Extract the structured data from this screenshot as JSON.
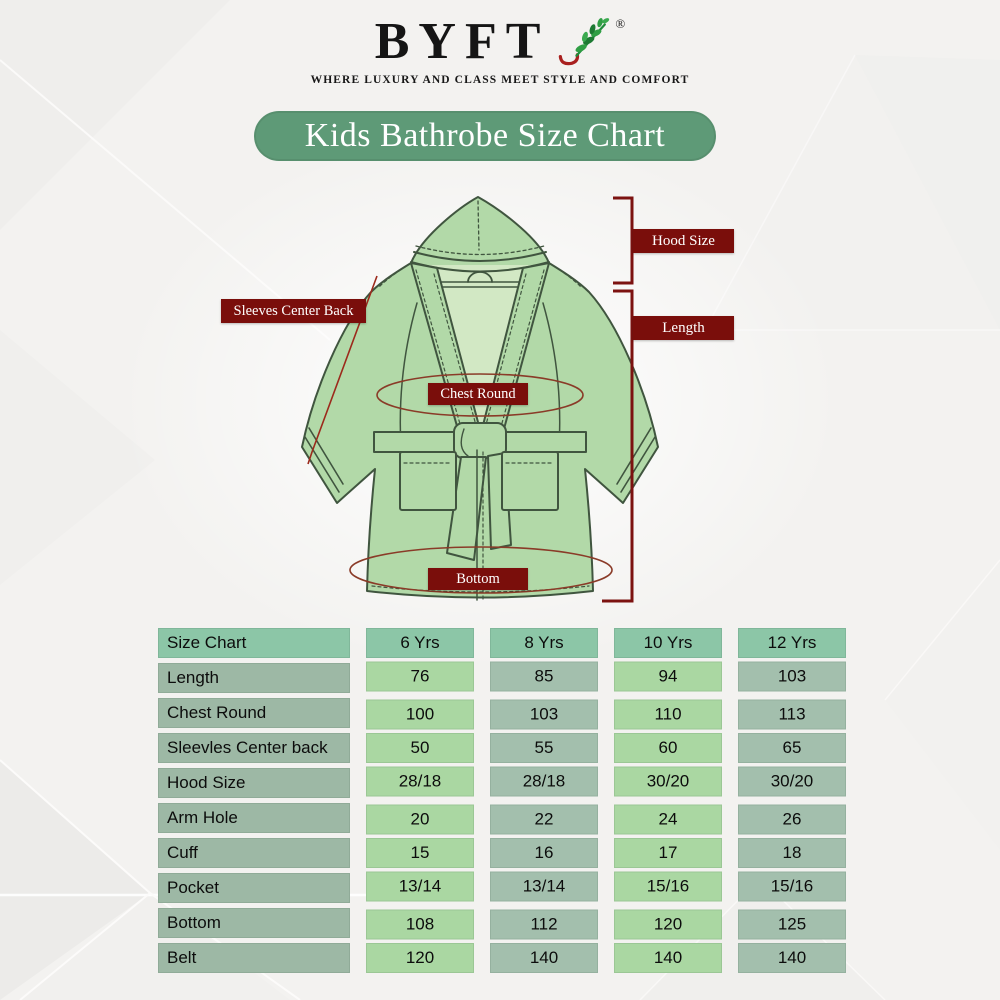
{
  "brand": {
    "name": "BYFT",
    "registered": "®",
    "tagline": "WHERE LUXURY AND CLASS MEET STYLE AND COMFORT"
  },
  "title": "Kids Bathrobe Size Chart",
  "diagram": {
    "annotations": {
      "hood_size": "Hood Size",
      "length": "Length",
      "sleeves_center_back": "Sleeves Center Back",
      "chest_round": "Chest Round",
      "bottom": "Bottom"
    }
  },
  "table": {
    "header": [
      "Size Chart",
      "6 Yrs",
      "8 Yrs",
      "10 Yrs",
      "12 Yrs"
    ],
    "rows": [
      {
        "label": "Length",
        "values": [
          "76",
          "85",
          "94",
          "103"
        ]
      },
      {
        "label": "Chest Round",
        "values": [
          "100",
          "103",
          "110",
          "113"
        ]
      },
      {
        "label": "Sleevles Center back",
        "values": [
          "50",
          "55",
          "60",
          "65"
        ]
      },
      {
        "label": "Hood Size",
        "values": [
          "28/18",
          "28/18",
          "30/20",
          "30/20"
        ]
      },
      {
        "label": "Arm Hole",
        "values": [
          "20",
          "22",
          "24",
          "26"
        ]
      },
      {
        "label": "Cuff",
        "values": [
          "15",
          "16",
          "17",
          "18"
        ]
      },
      {
        "label": "Pocket",
        "values": [
          "13/14",
          "13/14",
          "15/16",
          "15/16"
        ]
      },
      {
        "label": "Bottom",
        "values": [
          "108",
          "112",
          "120",
          "125"
        ]
      },
      {
        "label": "Belt",
        "values": [
          "120",
          "140",
          "140",
          "140"
        ]
      }
    ]
  },
  "colors": {
    "title_bg": "#5e9a77",
    "annotation_bg": "#7a0e0b",
    "header_cell": "#8cc6a7",
    "label_cell": "#9db8a5",
    "cell_light": "#aad7a2",
    "cell_sage": "#a3bfad",
    "robe_fill": "#b2d9a8",
    "robe_inner": "#d2e8c4",
    "robe_outline": "#40553f",
    "measure_ellipse": "#8a3b28",
    "measure_bracket": "#7c1210"
  }
}
